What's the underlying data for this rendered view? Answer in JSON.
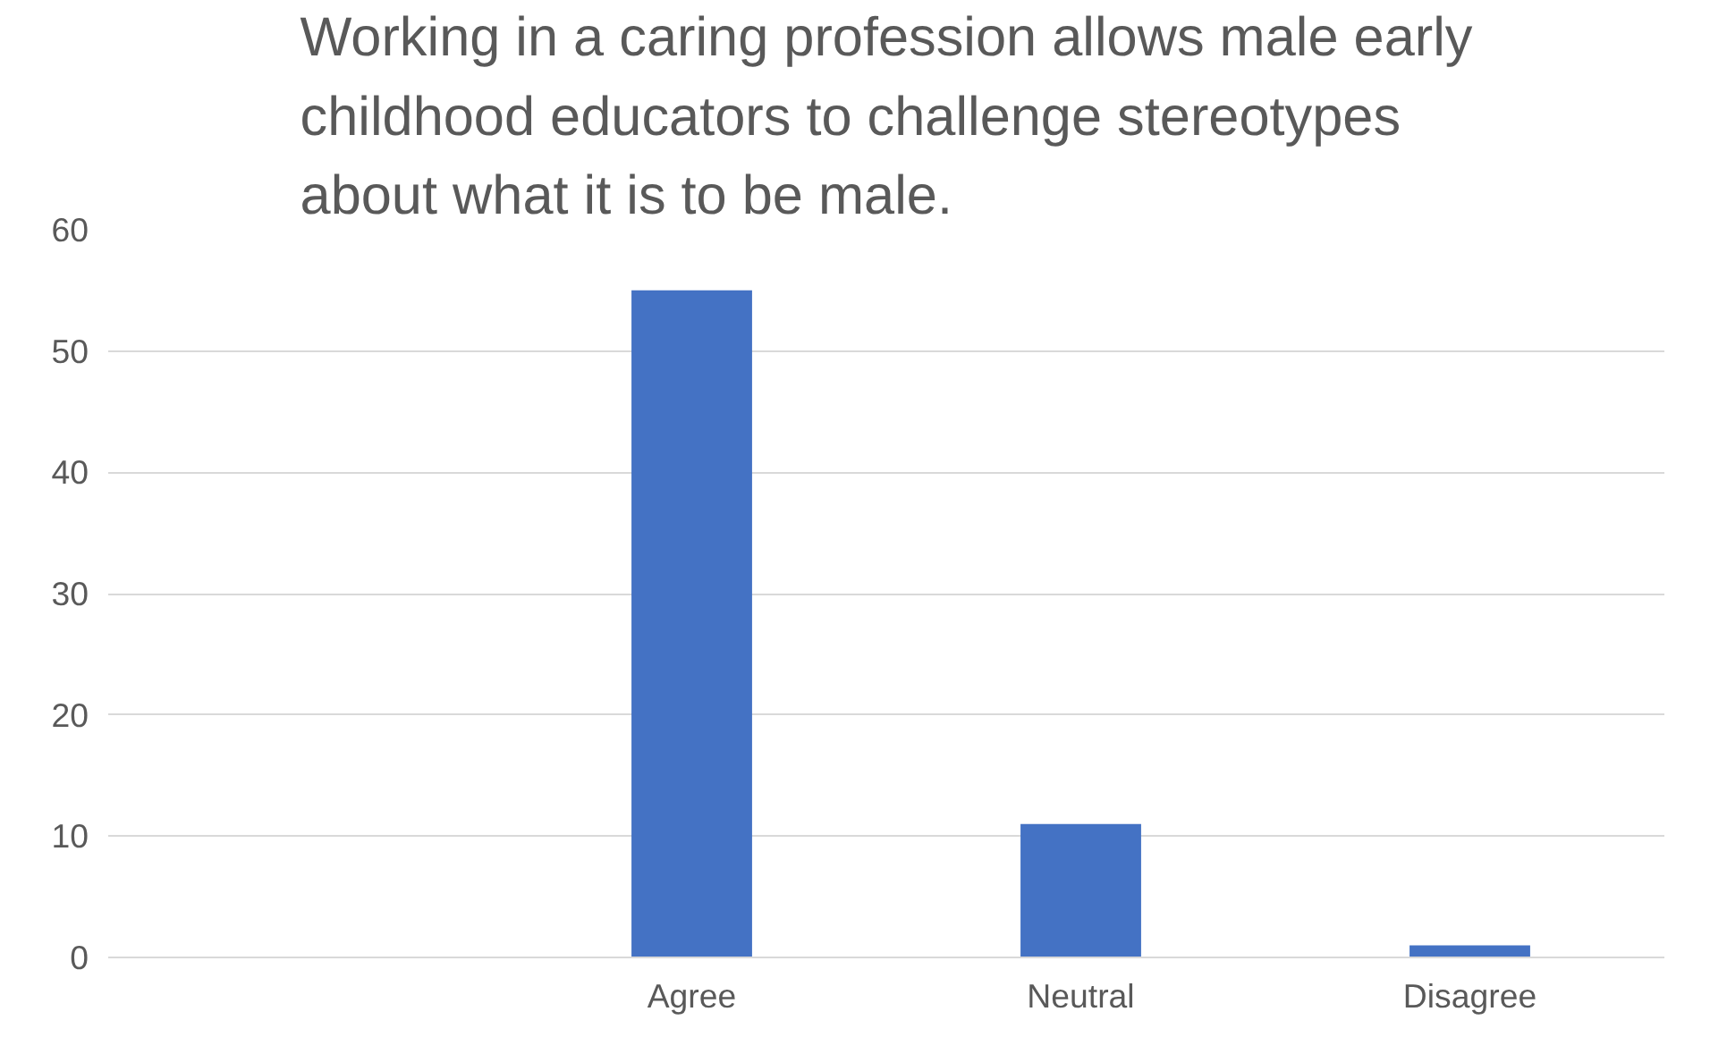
{
  "chart_data": {
    "type": "bar",
    "title": "Working in a caring profession allows male early childhood educators to challenge stereotypes about what it is to be male.",
    "categories": [
      null,
      "Agree",
      "Neutral",
      "Disagree"
    ],
    "values": [
      null,
      55,
      11,
      1
    ],
    "color": "#4472c4",
    "ylim": [
      0,
      60
    ],
    "yticks": [
      0,
      10,
      20,
      30,
      40,
      50,
      60
    ],
    "grid": "y"
  }
}
